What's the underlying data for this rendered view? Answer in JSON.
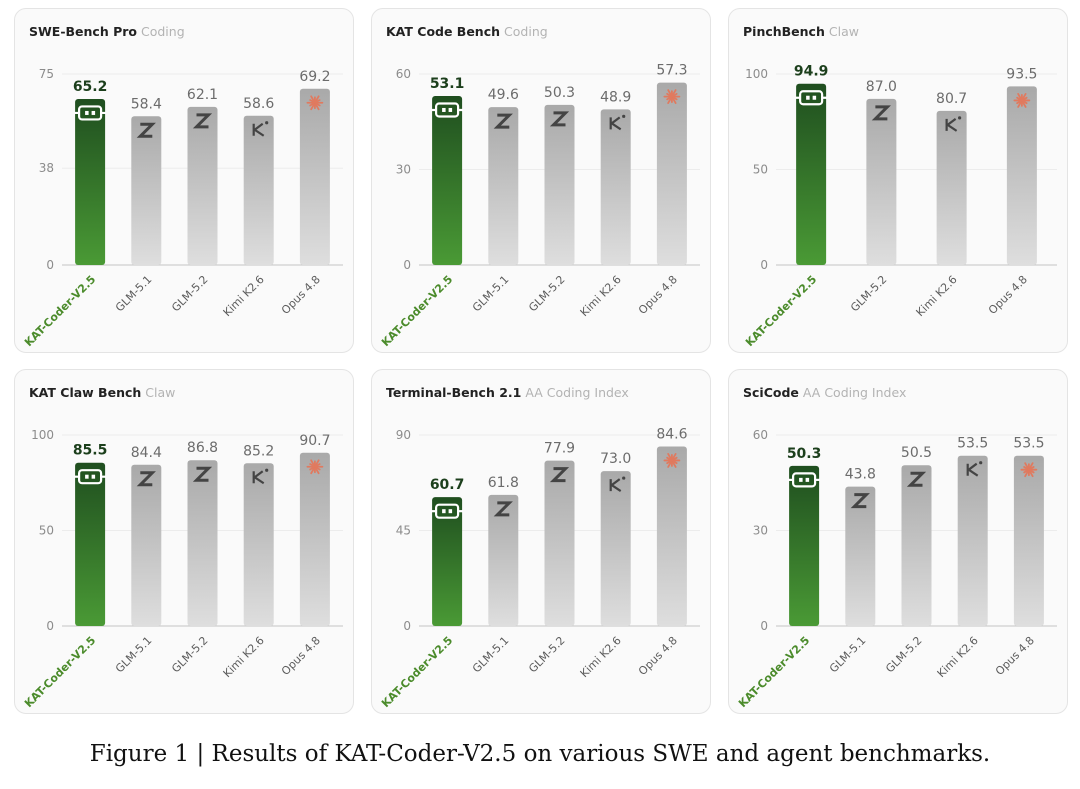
{
  "caption": {
    "prefix": "Figure 1",
    "separator": "|",
    "text": "Results of KAT-Coder-V2.5 on various SWE and agent benchmarks."
  },
  "colors": {
    "highlight_top": "#1f4e1f",
    "highlight_bottom": "#4a9a35",
    "highlight_label": "#4b8b2b",
    "highlight_value": "#1c3f1c",
    "other_top": "#a9a9a9",
    "other_bottom": "#dedede",
    "other_label": "#5c5c5c",
    "other_value": "#6c6c6c",
    "axis_tick": "#8c8c8c",
    "opus_icon": "#e07a5f"
  },
  "chart_data": [
    {
      "type": "bar",
      "title": "SWE-Bench Pro",
      "subtitle": "Coding",
      "categories": [
        "KAT-Coder-V2.5",
        "GLM-5.1",
        "GLM-5.2",
        "Kimi K2.6",
        "Opus 4.8"
      ],
      "values": [
        65.2,
        58.4,
        62.1,
        58.6,
        69.2
      ],
      "value_labels": [
        "65.2",
        "58.4",
        "62.1",
        "58.6",
        "69.2"
      ],
      "icons": [
        "kat-icon",
        "zhipu-icon",
        "zhipu-icon",
        "kimi-icon",
        "claude-icon"
      ],
      "highlight": "KAT-Coder-V2.5",
      "ylim": [
        0,
        75
      ],
      "yticks": [
        0,
        38,
        75
      ],
      "grid": true,
      "legend": "none"
    },
    {
      "type": "bar",
      "title": "KAT Code Bench",
      "subtitle": "Coding",
      "categories": [
        "KAT-Coder-V2.5",
        "GLM-5.1",
        "GLM-5.2",
        "Kimi K2.6",
        "Opus 4.8"
      ],
      "values": [
        53.1,
        49.6,
        50.3,
        48.9,
        57.3
      ],
      "value_labels": [
        "53.1",
        "49.6",
        "50.3",
        "48.9",
        "57.3"
      ],
      "icons": [
        "kat-icon",
        "zhipu-icon",
        "zhipu-icon",
        "kimi-icon",
        "claude-icon"
      ],
      "highlight": "KAT-Coder-V2.5",
      "ylim": [
        0,
        60
      ],
      "yticks": [
        0,
        30,
        60
      ],
      "grid": true,
      "legend": "none"
    },
    {
      "type": "bar",
      "title": "PinchBench",
      "subtitle": "Claw",
      "categories": [
        "KAT-Coder-V2.5",
        "GLM-5.2",
        "Kimi K2.6",
        "Opus 4.8"
      ],
      "values": [
        94.9,
        87.0,
        80.7,
        93.5
      ],
      "value_labels": [
        "94.9",
        "87.0",
        "80.7",
        "93.5"
      ],
      "icons": [
        "kat-icon",
        "zhipu-icon",
        "kimi-icon",
        "claude-icon"
      ],
      "highlight": "KAT-Coder-V2.5",
      "ylim": [
        0,
        100
      ],
      "yticks": [
        0,
        50,
        100
      ],
      "grid": true,
      "legend": "none"
    },
    {
      "type": "bar",
      "title": "KAT Claw Bench",
      "subtitle": "Claw",
      "categories": [
        "KAT-Coder-V2.5",
        "GLM-5.1",
        "GLM-5.2",
        "Kimi K2.6",
        "Opus 4.8"
      ],
      "values": [
        85.5,
        84.4,
        86.8,
        85.2,
        90.7
      ],
      "value_labels": [
        "85.5",
        "84.4",
        "86.8",
        "85.2",
        "90.7"
      ],
      "icons": [
        "kat-icon",
        "zhipu-icon",
        "zhipu-icon",
        "kimi-icon",
        "claude-icon"
      ],
      "highlight": "KAT-Coder-V2.5",
      "ylim": [
        0,
        100
      ],
      "yticks": [
        0,
        50,
        100
      ],
      "grid": true,
      "legend": "none"
    },
    {
      "type": "bar",
      "title": "Terminal-Bench 2.1",
      "subtitle": "AA Coding Index",
      "categories": [
        "KAT-Coder-V2.5",
        "GLM-5.1",
        "GLM-5.2",
        "Kimi K2.6",
        "Opus 4.8"
      ],
      "values": [
        60.7,
        61.8,
        77.9,
        73.0,
        84.6
      ],
      "value_labels": [
        "60.7",
        "61.8",
        "77.9",
        "73.0",
        "84.6"
      ],
      "icons": [
        "kat-icon",
        "zhipu-icon",
        "zhipu-icon",
        "kimi-icon",
        "claude-icon"
      ],
      "highlight": "KAT-Coder-V2.5",
      "ylim": [
        0,
        90
      ],
      "yticks": [
        0,
        45,
        90
      ],
      "grid": true,
      "legend": "none"
    },
    {
      "type": "bar",
      "title": "SciCode",
      "subtitle": "AA Coding Index",
      "categories": [
        "KAT-Coder-V2.5",
        "GLM-5.1",
        "GLM-5.2",
        "Kimi K2.6",
        "Opus 4.8"
      ],
      "values": [
        50.3,
        43.8,
        50.5,
        53.5,
        53.5
      ],
      "value_labels": [
        "50.3",
        "43.8",
        "50.5",
        "53.5",
        "53.5"
      ],
      "icons": [
        "kat-icon",
        "zhipu-icon",
        "zhipu-icon",
        "kimi-icon",
        "claude-icon"
      ],
      "highlight": "KAT-Coder-V2.5",
      "ylim": [
        0,
        60
      ],
      "yticks": [
        0,
        30,
        60
      ],
      "grid": true,
      "legend": "none"
    }
  ]
}
